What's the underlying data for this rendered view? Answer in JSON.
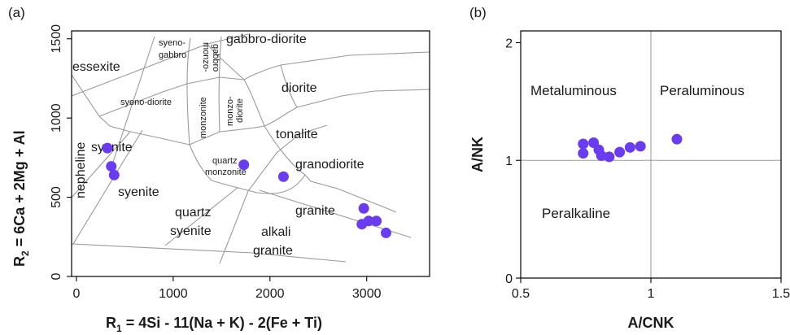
{
  "chart_data": [
    {
      "panel": "(a)",
      "type": "scatter",
      "xlabel_main": "R",
      "xlabel_sub": "1",
      "xlabel_rest": " = 4Si - 11(Na + K) - 2(Fe + Ti)",
      "ylabel_main": "R",
      "ylabel_sub": "2",
      "ylabel_rest": " = 6Ca + 2Mg + Al",
      "xlim": [
        -50,
        3650
      ],
      "ylim": [
        0,
        1550
      ],
      "x_ticks": [
        0,
        1000,
        2000,
        3000
      ],
      "y_ticks": [
        0,
        500,
        1000,
        1500
      ],
      "fields": [
        "essexite",
        "syeno-",
        "gabbro",
        "monzo-",
        "gabbro",
        "gabbro-diorite",
        "syeno-diorite",
        "diorite",
        "nepheline",
        "syenite",
        "monzonite",
        "monzo-",
        "diorite",
        "tonalite",
        "quartz",
        "monzonite",
        "granodiorite",
        "syenite",
        "quartz",
        "syenite",
        "granite",
        "alkali",
        "granite"
      ],
      "points": [
        [
          320,
          810
        ],
        [
          360,
          695
        ],
        [
          390,
          640
        ],
        [
          1730,
          705
        ],
        [
          2140,
          630
        ],
        [
          2970,
          430
        ],
        [
          2950,
          330
        ],
        [
          3020,
          350
        ],
        [
          3100,
          350
        ],
        [
          3200,
          275
        ]
      ]
    },
    {
      "panel": "(b)",
      "type": "scatter",
      "xlabel": "A/CNK",
      "ylabel": "A/NK",
      "xlim": [
        0.5,
        1.5
      ],
      "ylim": [
        0,
        2.1
      ],
      "x_ticks": [
        "0.5",
        "1",
        "1.5"
      ],
      "y_ticks": [
        "0",
        "1",
        "2"
      ],
      "reference_lines": {
        "x": 1,
        "y": 1
      },
      "regions": [
        "Metaluminous",
        "Peraluminous",
        "Peralkaline"
      ],
      "points": [
        [
          0.74,
          1.14
        ],
        [
          0.78,
          1.15
        ],
        [
          0.74,
          1.06
        ],
        [
          0.8,
          1.09
        ],
        [
          0.81,
          1.04
        ],
        [
          0.84,
          1.03
        ],
        [
          0.88,
          1.07
        ],
        [
          0.92,
          1.11
        ],
        [
          0.96,
          1.12
        ],
        [
          1.1,
          1.18
        ]
      ]
    }
  ]
}
